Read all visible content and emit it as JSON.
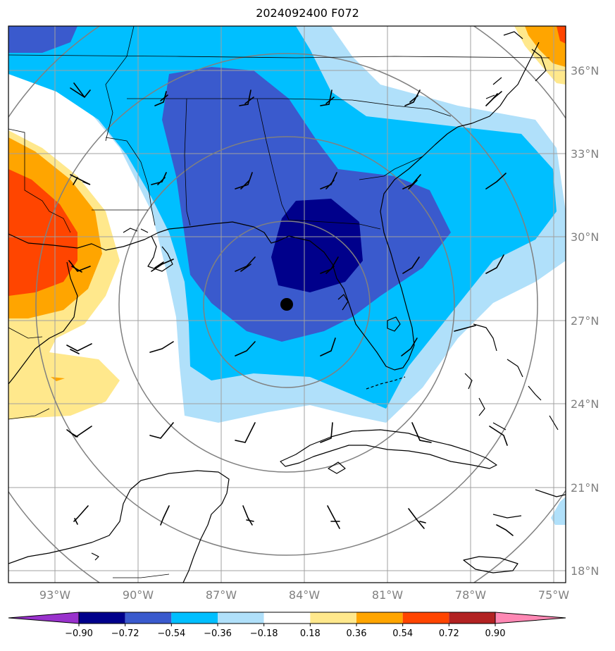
{
  "title": "2024092400 F072",
  "latitude_labels": [
    "36°N",
    "33°N",
    "30°N",
    "27°N",
    "24°N",
    "21°N",
    "18°N"
  ],
  "longitude_labels": [
    "93°W",
    "90°W",
    "87°W",
    "84°W",
    "81°W",
    "78°W",
    "75°W"
  ],
  "colorbar": {
    "ticks": [
      "−0.90",
      "−0.72",
      "−0.54",
      "−0.36",
      "−0.18",
      "0.18",
      "0.36",
      "0.54",
      "0.72",
      "0.90"
    ],
    "colors": [
      "#9932cc",
      "#00008b",
      "#3a5acd",
      "#00bfff",
      "#b0e0fa",
      "#ffffff",
      "#ffe88c",
      "#ffa500",
      "#ff4500",
      "#b22222",
      "#ff88b4"
    ]
  },
  "colors": {
    "land_outline": "#000000",
    "grid": "#a0a0a0",
    "range_rings": "#808080"
  },
  "storm_center": {
    "lon": -84.6,
    "lat": 27.6
  },
  "icons": [
    "wind-barb-icon",
    "storm-center-icon"
  ]
}
